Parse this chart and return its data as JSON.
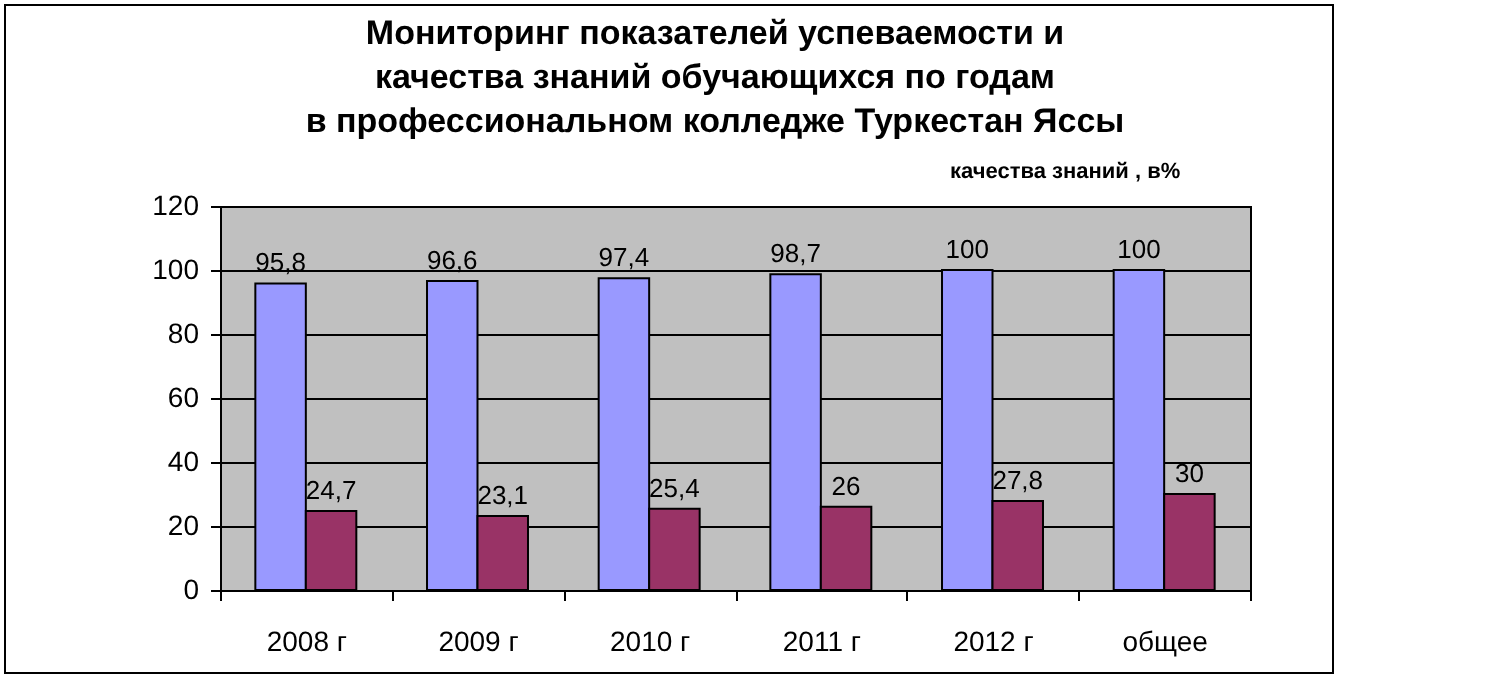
{
  "chart_data": {
    "type": "bar",
    "title": "Мониторинг показателей успеваемости и\nкачества знаний обучающихся по годам\nв профессиональном колледже Туркестан Яссы",
    "annotations": [
      "качества знаний , в%"
    ],
    "categories": [
      "2008 г",
      "2009 г",
      "2010 г",
      "2011 г",
      "2012 г",
      "общее"
    ],
    "series": [
      {
        "color": "#9999ff",
        "values": [
          95.8,
          96.6,
          97.4,
          98.7,
          100,
          100
        ],
        "value_labels": [
          "95,8",
          "96,6",
          "97,4",
          "98,7",
          "100",
          "100"
        ]
      },
      {
        "color": "#993366",
        "values": [
          24.7,
          23.1,
          25.4,
          26,
          27.8,
          30
        ],
        "value_labels": [
          "24,7",
          "23,1",
          "25,4",
          "26",
          "27,8",
          "30"
        ]
      }
    ],
    "ylim": [
      0,
      120
    ],
    "yticks": [
      0,
      20,
      40,
      60,
      80,
      100,
      120
    ],
    "grid": "y",
    "legend": false
  }
}
